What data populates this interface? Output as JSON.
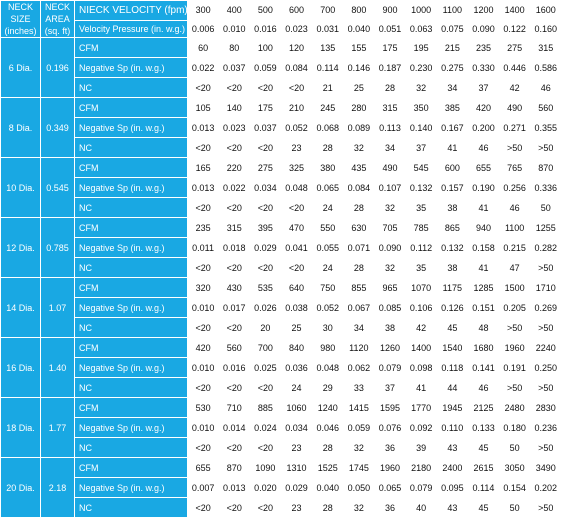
{
  "headers": {
    "neck_size": "NECK SIZE (inches)",
    "neck_area": "NECK AREA (sq. ft)",
    "neck_velocity": "NIECK VELOCITY (fpm)",
    "velocity_pressure": "Velocity Pressure (in. w.g.)"
  },
  "velocities": [
    "300",
    "400",
    "500",
    "600",
    "700",
    "800",
    "900",
    "1000",
    "1100",
    "1200",
    "1400",
    "1600"
  ],
  "velocity_pressures": [
    "0.006",
    "0.010",
    "0.016",
    "0.023",
    "0.031",
    "0.040",
    "0.051",
    "0.063",
    "0.075",
    "0.090",
    "0.122",
    "0.160"
  ],
  "groups": [
    {
      "size": "6 Dia.",
      "area": "0.196",
      "rows": [
        {
          "label": "CFM",
          "values": [
            "60",
            "80",
            "100",
            "120",
            "135",
            "155",
            "175",
            "195",
            "215",
            "235",
            "275",
            "315"
          ]
        },
        {
          "label": "Negative Sp (in. w.g.)",
          "values": [
            "0.022",
            "0.037",
            "0.059",
            "0.084",
            "0.114",
            "0.146",
            "0.187",
            "0.230",
            "0.275",
            "0.330",
            "0.446",
            "0.586"
          ]
        },
        {
          "label": "NC",
          "values": [
            "<20",
            "<20",
            "<20",
            "<20",
            "21",
            "25",
            "28",
            "32",
            "34",
            "37",
            "42",
            "46"
          ]
        }
      ]
    },
    {
      "size": "8 Dia.",
      "area": "0.349",
      "rows": [
        {
          "label": "CFM",
          "values": [
            "105",
            "140",
            "175",
            "210",
            "245",
            "280",
            "315",
            "350",
            "385",
            "420",
            "490",
            "560"
          ]
        },
        {
          "label": "Negative Sp (in. w.g.)",
          "values": [
            "0.013",
            "0.023",
            "0.037",
            "0.052",
            "0.068",
            "0.089",
            "0.113",
            "0.140",
            "0.167",
            "0.200",
            "0.271",
            "0.355"
          ]
        },
        {
          "label": "NC",
          "values": [
            "<20",
            "<20",
            "<20",
            "23",
            "28",
            "32",
            "34",
            "37",
            "41",
            "46",
            ">50",
            ">50"
          ]
        }
      ]
    },
    {
      "size": "10 Dia.",
      "area": "0.545",
      "rows": [
        {
          "label": "CFM",
          "values": [
            "165",
            "220",
            "275",
            "325",
            "380",
            "435",
            "490",
            "545",
            "600",
            "655",
            "765",
            "870"
          ]
        },
        {
          "label": "Negative Sp (in. w.g.)",
          "values": [
            "0.013",
            "0.022",
            "0.034",
            "0.048",
            "0.065",
            "0.084",
            "0.107",
            "0.132",
            "0.157",
            "0.190",
            "0.256",
            "0.336"
          ]
        },
        {
          "label": "NC",
          "values": [
            "<20",
            "<20",
            "<20",
            "<20",
            "24",
            "28",
            "32",
            "35",
            "38",
            "41",
            "46",
            "50"
          ]
        }
      ]
    },
    {
      "size": "12 Dia.",
      "area": "0.785",
      "rows": [
        {
          "label": "CFM",
          "values": [
            "235",
            "315",
            "395",
            "470",
            "550",
            "630",
            "705",
            "785",
            "865",
            "940",
            "1100",
            "1255"
          ]
        },
        {
          "label": "Negative Sp (in. w.g.)",
          "values": [
            "0.011",
            "0.018",
            "0.029",
            "0.041",
            "0.055",
            "0.071",
            "0.090",
            "0.112",
            "0.132",
            "0.158",
            "0.215",
            "0.282"
          ]
        },
        {
          "label": "NC",
          "values": [
            "<20",
            "<20",
            "<20",
            "<20",
            "24",
            "28",
            "32",
            "35",
            "38",
            "41",
            "47",
            ">50"
          ]
        }
      ]
    },
    {
      "size": "14 Dia.",
      "area": "1.07",
      "rows": [
        {
          "label": "CFM",
          "values": [
            "320",
            "430",
            "535",
            "640",
            "750",
            "855",
            "965",
            "1070",
            "1175",
            "1285",
            "1500",
            "1710"
          ]
        },
        {
          "label": "Negative Sp (in. w.g.)",
          "values": [
            "0.010",
            "0.017",
            "0.026",
            "0.038",
            "0.052",
            "0.067",
            "0.085",
            "0.106",
            "0.126",
            "0.151",
            "0.205",
            "0.269"
          ]
        },
        {
          "label": "NC",
          "values": [
            "<20",
            "<20",
            "20",
            "25",
            "30",
            "34",
            "38",
            "42",
            "45",
            "48",
            ">50",
            ">50"
          ]
        }
      ]
    },
    {
      "size": "16 Dia.",
      "area": "1.40",
      "rows": [
        {
          "label": "CFM",
          "values": [
            "420",
            "560",
            "700",
            "840",
            "980",
            "1120",
            "1260",
            "1400",
            "1540",
            "1680",
            "1960",
            "2240"
          ]
        },
        {
          "label": "Negative Sp (in. w.g.)",
          "values": [
            "0.010",
            "0.016",
            "0.025",
            "0.036",
            "0.048",
            "0.062",
            "0.079",
            "0.098",
            "0.118",
            "0.141",
            "0.191",
            "0.250"
          ]
        },
        {
          "label": "NC",
          "values": [
            "<20",
            "<20",
            "<20",
            "24",
            "29",
            "33",
            "37",
            "41",
            "44",
            "46",
            ">50",
            ">50"
          ]
        }
      ]
    },
    {
      "size": "18 Dia.",
      "area": "1.77",
      "rows": [
        {
          "label": "CFM",
          "values": [
            "530",
            "710",
            "885",
            "1060",
            "1240",
            "1415",
            "1595",
            "1770",
            "1945",
            "2125",
            "2480",
            "2830"
          ]
        },
        {
          "label": "Negative Sp (in. w.g.)",
          "values": [
            "0.010",
            "0.014",
            "0.024",
            "0.034",
            "0.046",
            "0.059",
            "0.076",
            "0.092",
            "0.110",
            "0.133",
            "0.180",
            "0.236"
          ]
        },
        {
          "label": "NC",
          "values": [
            "<20",
            "<20",
            "<20",
            "23",
            "28",
            "32",
            "36",
            "39",
            "43",
            "45",
            "50",
            ">50"
          ]
        }
      ]
    },
    {
      "size": "20 Dia.",
      "area": "2.18",
      "rows": [
        {
          "label": "CFM",
          "values": [
            "655",
            "870",
            "1090",
            "1310",
            "1525",
            "1745",
            "1960",
            "2180",
            "2400",
            "2615",
            "3050",
            "3490"
          ]
        },
        {
          "label": "Negative Sp (in. w.g.)",
          "values": [
            "0.007",
            "0.013",
            "0.020",
            "0.029",
            "0.040",
            "0.050",
            "0.065",
            "0.079",
            "0.095",
            "0.114",
            "0.154",
            "0.202"
          ]
        },
        {
          "label": "NC",
          "values": [
            "<20",
            "<20",
            "<20",
            "23",
            "28",
            "32",
            "36",
            "40",
            "43",
            "45",
            "50",
            ">50"
          ]
        }
      ]
    }
  ],
  "colors": {
    "header_blue": "#19a8e3",
    "cell_white": "#ffffff",
    "text_dark": "#111111"
  }
}
